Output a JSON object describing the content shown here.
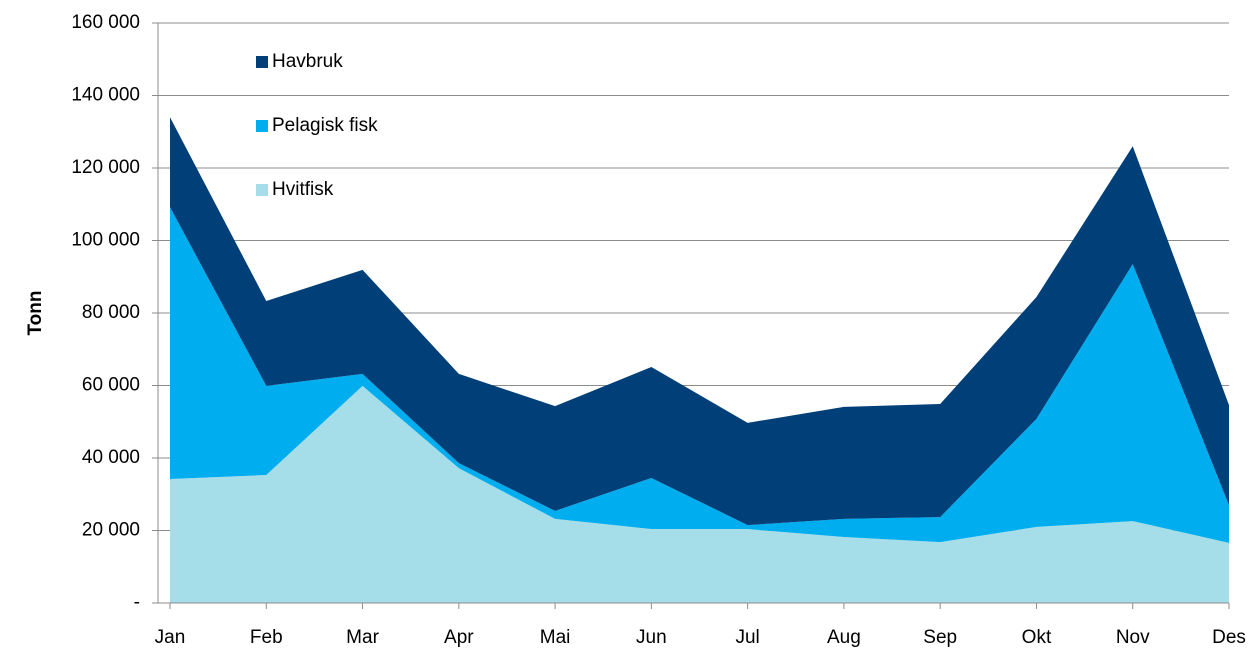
{
  "chart_data": {
    "type": "area",
    "stacked": true,
    "y_label": "Tonn",
    "categories": [
      "Jan",
      "Feb",
      "Mar",
      "Apr",
      "Mai",
      "Jun",
      "Jul",
      "Aug",
      "Sep",
      "Okt",
      "Nov",
      "Des"
    ],
    "series": [
      {
        "name": "Hvitfisk",
        "color": "#a5dde9",
        "values": [
          34200,
          35300,
          59900,
          37200,
          23200,
          20400,
          20400,
          18200,
          16800,
          21000,
          22600,
          16600
        ]
      },
      {
        "name": "Pelagisk fisk",
        "color": "#00adee",
        "values": [
          75000,
          24600,
          3300,
          1400,
          2200,
          14100,
          1100,
          5000,
          6900,
          29800,
          70900,
          10400
        ]
      },
      {
        "name": "Havbruk",
        "color": "#003f78",
        "values": [
          24800,
          23400,
          28700,
          24600,
          28900,
          30600,
          28200,
          30900,
          31200,
          33600,
          32500,
          27600
        ]
      }
    ],
    "ylim": [
      0,
      160000
    ],
    "yticks": [
      {
        "value": 0,
        "label": "-"
      },
      {
        "value": 20000,
        "label": "20 000"
      },
      {
        "value": 40000,
        "label": "40 000"
      },
      {
        "value": 60000,
        "label": "60 000"
      },
      {
        "value": 80000,
        "label": "80 000"
      },
      {
        "value": 100000,
        "label": "100 000"
      },
      {
        "value": 120000,
        "label": "120 000"
      },
      {
        "value": 140000,
        "label": "140 000"
      },
      {
        "value": 160000,
        "label": "160 000"
      }
    ],
    "grid": true
  }
}
